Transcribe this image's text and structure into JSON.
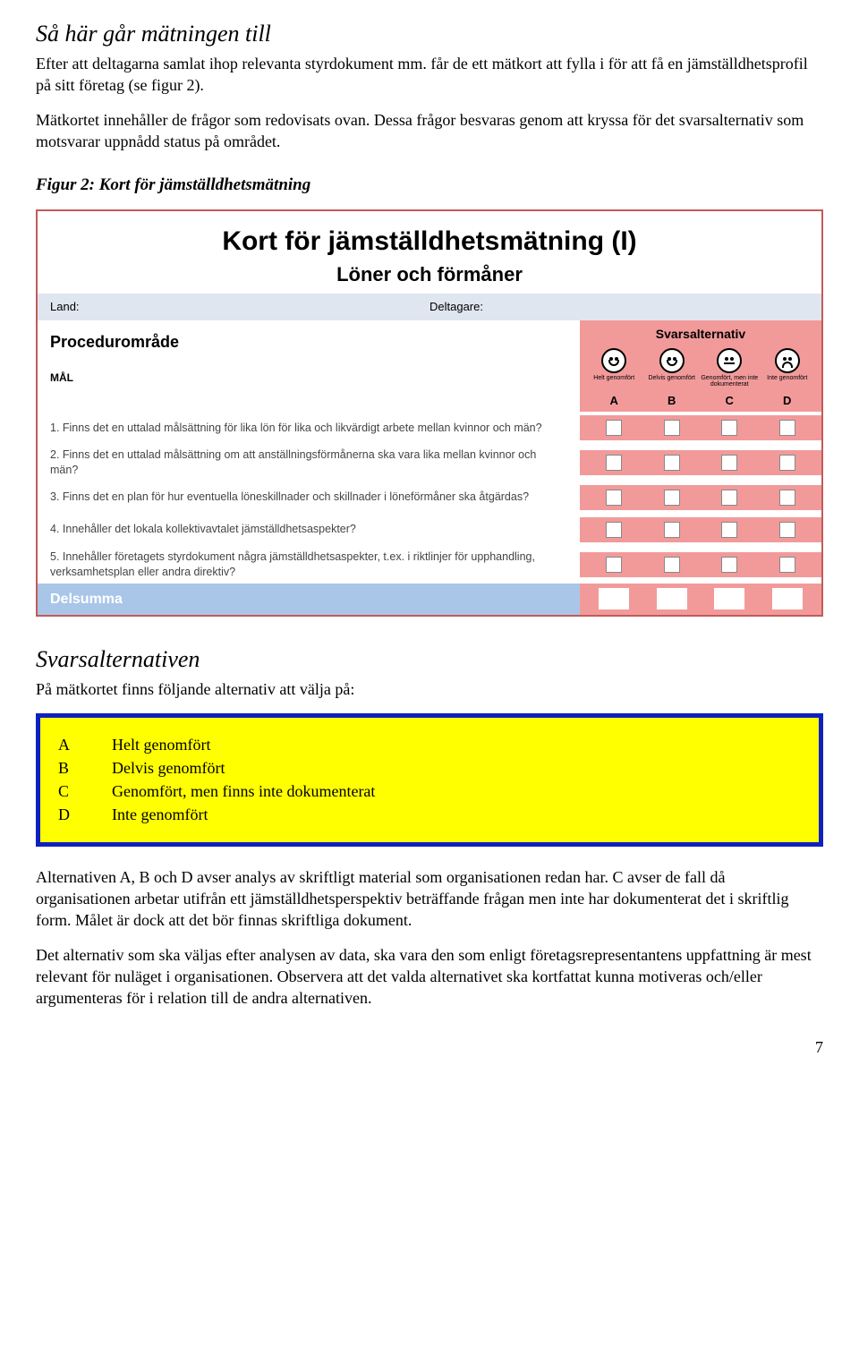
{
  "section": {
    "heading": "Så här går mätningen till",
    "para1": "Efter att deltagarna samlat ihop relevanta styrdokument mm. får de ett mätkort att fylla i för att få en jämställdhetsprofil på sitt företag (se figur 2).",
    "para2": "Mätkortet innehåller de frågor som redovisats ovan. Dessa frågor besvaras genom att kryssa för det svarsalternativ som motsvarar uppnådd status på området."
  },
  "figure": {
    "caption": "Figur 2: Kort för jämställdhetsmätning"
  },
  "card": {
    "title": "Kort för jämställdhetsmätning (I)",
    "subtitle": "Löner och förmåner",
    "meta": {
      "fields": [
        "Land:",
        "Deltagare:"
      ]
    },
    "left": {
      "proc": "Procedurområde",
      "mal": "MÅL"
    },
    "svar": {
      "header": "Svarsalternativ",
      "cols": [
        {
          "tiny": "Helt genomfört",
          "letter": "A",
          "face": "happy"
        },
        {
          "tiny": "Delvis genomfört",
          "letter": "B",
          "face": "happy"
        },
        {
          "tiny": "Genomfört, men inte dokumenterat",
          "letter": "C",
          "face": "neutral"
        },
        {
          "tiny": "Inte genomfört",
          "letter": "D",
          "face": "sad"
        }
      ]
    },
    "questions": [
      "1. Finns det en uttalad målsättning för lika lön för lika och likvärdigt arbete mellan kvinnor och män?",
      "2. Finns det en uttalad målsättning om att anställningsförmånerna ska vara lika mellan kvinnor och män?",
      "3. Finns det en plan för hur eventuella löneskillnader och skillnader i löneförmåner ska åtgärdas?",
      "4. Innehåller det lokala kollektivavtalet jämställdhetsaspekter?",
      "5. Innehåller företagets styrdokument några jämställdhetsaspekter, t.ex. i riktlinjer för upphandling, verksamhetsplan eller andra direktiv?"
    ],
    "delsumma": "Delsumma"
  },
  "alternatives": {
    "heading": "Svarsalternativen",
    "intro": "På mätkortet finns följande alternativ att välja på:",
    "items": [
      {
        "key": "A",
        "text": "Helt genomfört"
      },
      {
        "key": "B",
        "text": "Delvis genomfört"
      },
      {
        "key": "C",
        "text": "Genomfört, men finns inte dokumenterat"
      },
      {
        "key": "D",
        "text": "Inte genomfört"
      }
    ]
  },
  "closing": {
    "p1": "Alternativen A, B och D avser analys av skriftligt material som organisationen redan har. C avser de fall då organisationen arbetar utifrån ett jämställdhetsperspektiv beträffande frågan men inte har dokumenterat det i skriftlig form. Målet är dock att det bör finnas skriftliga dokument.",
    "p2": "Det alternativ som ska väljas efter analysen av data, ska vara den som enligt företagsrepresentantens uppfattning är mest relevant för nuläget i organisationen. Observera att det valda alternativet ska kortfattat kunna motiveras och/eller argumenteras för i relation till de andra alternativen."
  },
  "page_number": "7"
}
